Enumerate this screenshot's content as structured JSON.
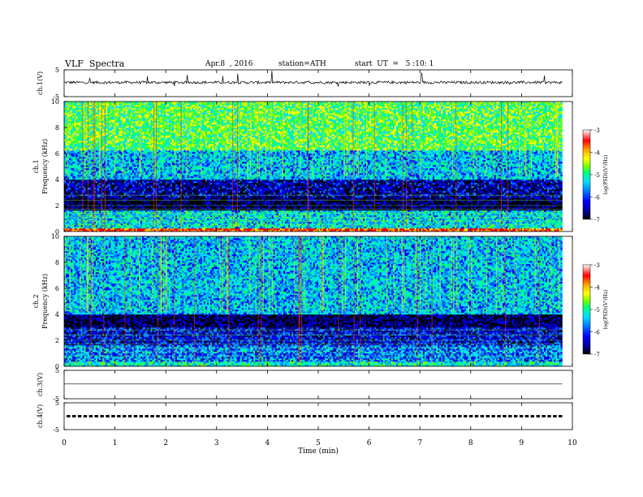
{
  "header": {
    "title": "VLF  Spectra",
    "date": "Apr.8  , 2016",
    "station": "station=ATH",
    "start": "start  UT  =   5 :10: 1"
  },
  "chart_data": [
    {
      "type": "line",
      "panel": "ch1-waveform",
      "ylabel": "ch.1(V)",
      "ylim": [
        -5,
        5
      ],
      "yticks": [
        "5",
        "-5"
      ],
      "xlim": [
        0,
        10
      ],
      "note": "continuous noisy waveform near +0.3 V with spikes"
    },
    {
      "type": "heatmap",
      "panel": "ch1-spectrogram",
      "ylabel": "ch.1\nFrequency (kHz)",
      "ylim": [
        0,
        10
      ],
      "yticks": [
        "0",
        "2",
        "4",
        "6",
        "8",
        "10"
      ],
      "xlim": [
        0,
        10
      ],
      "data_end_min": 9.8,
      "colorbar": {
        "label": "log(PSD)(V²/Hz)",
        "ticks": [
          "-3",
          "-4",
          "-5",
          "-6",
          "-7"
        ],
        "range": [
          -7,
          -3
        ]
      },
      "bands": [
        {
          "f_min": 0.0,
          "f_max": 0.3,
          "level": -3.3
        },
        {
          "f_min": 0.3,
          "f_max": 1.6,
          "level": -5.2
        },
        {
          "f_min": 1.6,
          "f_max": 2.6,
          "level": -6.6
        },
        {
          "f_min": 2.6,
          "f_max": 4.0,
          "level": -6.3
        },
        {
          "f_min": 4.0,
          "f_max": 6.2,
          "level": -5.3
        },
        {
          "f_min": 6.2,
          "f_max": 10.0,
          "level": -4.6
        }
      ]
    },
    {
      "type": "heatmap",
      "panel": "ch2-spectrogram",
      "ylabel": "ch.2\nFrequency (kHz)",
      "ylim": [
        0,
        10
      ],
      "yticks": [
        "0",
        "2",
        "4",
        "6",
        "8",
        "10"
      ],
      "xlim": [
        0,
        10
      ],
      "data_end_min": 9.8,
      "colorbar": {
        "label": "log(PSD)(V²/Hz)",
        "ticks": [
          "-3",
          "-4",
          "-5",
          "-6",
          "-7"
        ],
        "range": [
          -7,
          -3
        ]
      },
      "bands": [
        {
          "f_min": 0.0,
          "f_max": 0.4,
          "level": -5.0
        },
        {
          "f_min": 0.4,
          "f_max": 1.6,
          "level": -5.6
        },
        {
          "f_min": 1.6,
          "f_max": 3.0,
          "level": -6.1
        },
        {
          "f_min": 3.0,
          "f_max": 4.0,
          "level": -6.6
        },
        {
          "f_min": 4.0,
          "f_max": 5.0,
          "level": -5.3
        },
        {
          "f_min": 5.0,
          "f_max": 10.0,
          "level": -5.3
        }
      ]
    },
    {
      "type": "line",
      "panel": "ch3-waveform",
      "ylabel": "ch.3(V)",
      "ylim": [
        -5,
        5
      ],
      "yticks": [
        "5",
        "-5"
      ],
      "xlim": [
        0,
        10
      ],
      "note": "flat trace near 0 V"
    },
    {
      "type": "line",
      "panel": "ch4-waveform",
      "ylabel": "ch.4(V)",
      "ylim": [
        -5,
        5
      ],
      "yticks": [
        "5",
        "-5"
      ],
      "xlim": [
        0,
        10
      ],
      "note": "dashed trace near 0 V (periodic pulses)"
    }
  ],
  "xaxis": {
    "label": "Time  (min)",
    "ticks": [
      "0",
      "1",
      "2",
      "3",
      "4",
      "5",
      "6",
      "7",
      "8",
      "9",
      "10"
    ]
  },
  "colors": {
    "scale": [
      "#000000",
      "#00008b",
      "#0000ff",
      "#0080ff",
      "#00e0ff",
      "#00ff80",
      "#80ff00",
      "#ffff00",
      "#ffa000",
      "#ff0000",
      "#ffffff"
    ]
  }
}
